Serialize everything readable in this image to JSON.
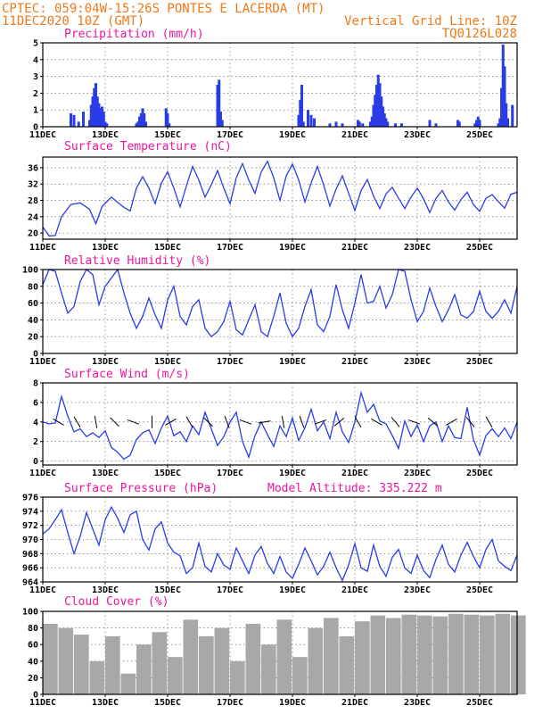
{
  "header": {
    "line1_left": "CPTEC:  059:04W-15:26S  PONTES E LACERDA (MT)",
    "line2_left": "11DEC2020 10Z (GMT)",
    "line2_right": "Vertical Grid Line: 10Z",
    "line3_right": "TQ0126L028"
  },
  "x_tick_labels": [
    "11DEC",
    "13DEC",
    "15DEC",
    "17DEC",
    "19DEC",
    "21DEC",
    "23DEC",
    "25DEC"
  ],
  "x_tick_days": [
    0,
    2,
    4,
    6,
    8,
    10,
    12,
    14
  ],
  "x_range_days": [
    0,
    15.2
  ],
  "chart_data": [
    {
      "type": "bar",
      "title": "Precipitation (mm/h)",
      "ylim": [
        0,
        5
      ],
      "yticks": [
        0,
        1,
        2,
        3,
        4,
        5
      ],
      "x_days": [
        0.9,
        1.0,
        1.15,
        1.3,
        1.5,
        1.55,
        1.6,
        1.65,
        1.7,
        1.75,
        1.8,
        1.85,
        1.9,
        1.95,
        2.0,
        2.05,
        3.0,
        3.05,
        3.1,
        3.15,
        3.2,
        3.25,
        3.3,
        3.95,
        4.0,
        4.05,
        5.6,
        5.65,
        5.7,
        5.75,
        8.2,
        8.25,
        8.3,
        8.35,
        8.5,
        8.6,
        8.7,
        9.2,
        9.4,
        9.6,
        10.1,
        10.15,
        10.25,
        10.5,
        10.55,
        10.6,
        10.65,
        10.7,
        10.75,
        10.8,
        10.85,
        10.9,
        10.95,
        11.0,
        11.05,
        11.3,
        11.5,
        12.4,
        12.6,
        13.3,
        13.35,
        13.85,
        13.9,
        13.95,
        14.0,
        14.6,
        14.65,
        14.7,
        14.75,
        14.8,
        14.85,
        14.9,
        15.05
      ],
      "values": [
        0.8,
        0.7,
        0.3,
        0.9,
        0.4,
        1.3,
        1.8,
        2.3,
        2.6,
        1.8,
        1.4,
        1.1,
        1.2,
        0.9,
        0.3,
        0.2,
        0.2,
        0.3,
        0.6,
        0.8,
        1.1,
        0.8,
        0.3,
        1.1,
        0.8,
        0.2,
        2.5,
        2.8,
        0.9,
        0.4,
        0.7,
        1.6,
        2.5,
        0.3,
        1.0,
        0.7,
        0.5,
        0.2,
        0.3,
        0.2,
        0.4,
        0.3,
        0.2,
        0.3,
        0.6,
        1.3,
        1.9,
        2.5,
        3.1,
        2.6,
        1.8,
        1.2,
        0.8,
        0.5,
        0.3,
        0.2,
        0.2,
        0.4,
        0.2,
        0.4,
        0.3,
        0.2,
        0.4,
        0.6,
        0.4,
        0.2,
        0.5,
        2.3,
        4.9,
        3.6,
        1.4,
        0.5,
        1.3
      ]
    },
    {
      "type": "line",
      "title": "Surface Temperature (nC)",
      "ylim": [
        18.5,
        38.6
      ],
      "yticks": [
        20,
        24,
        28,
        32,
        36
      ],
      "x_days": [
        0,
        0.2,
        0.4,
        0.6,
        0.9,
        1.2,
        1.5,
        1.7,
        1.9,
        2.2,
        2.4,
        2.6,
        2.8,
        3.0,
        3.2,
        3.4,
        3.6,
        3.8,
        4.0,
        4.2,
        4.4,
        4.6,
        4.8,
        5.0,
        5.2,
        5.4,
        5.6,
        5.8,
        6.0,
        6.2,
        6.4,
        6.6,
        6.8,
        7.0,
        7.2,
        7.4,
        7.6,
        7.8,
        8.0,
        8.2,
        8.4,
        8.6,
        8.8,
        9.0,
        9.2,
        9.4,
        9.6,
        9.8,
        10.0,
        10.2,
        10.4,
        10.6,
        10.8,
        11.0,
        11.2,
        11.4,
        11.6,
        11.8,
        12.0,
        12.2,
        12.4,
        12.6,
        12.8,
        13.0,
        13.2,
        13.4,
        13.6,
        13.8,
        14.0,
        14.2,
        14.4,
        14.6,
        14.8,
        15.0,
        15.2
      ],
      "values": [
        21.5,
        19.3,
        19.4,
        24.0,
        27.0,
        27.4,
        25.8,
        22.3,
        26.5,
        28.8,
        27.5,
        26.3,
        25.4,
        31.0,
        33.8,
        31.0,
        27.2,
        32.2,
        35.0,
        31.0,
        26.4,
        31.5,
        36.3,
        33.0,
        28.8,
        31.8,
        35.3,
        31.0,
        27.2,
        33.5,
        37.0,
        33.0,
        29.7,
        35.0,
        37.6,
        33.5,
        28.0,
        34.0,
        36.9,
        33.0,
        27.6,
        32.3,
        36.3,
        31.8,
        26.6,
        30.8,
        34.0,
        29.8,
        25.5,
        30.4,
        33.1,
        29.0,
        26.0,
        29.6,
        31.2,
        28.5,
        26.0,
        28.8,
        31.0,
        28.4,
        25.0,
        28.5,
        30.4,
        27.6,
        25.6,
        28.2,
        30.0,
        27.0,
        25.3,
        28.5,
        29.4,
        27.7,
        26.1,
        29.5,
        30.0
      ]
    },
    {
      "type": "line",
      "title": "Relative Humidity (%)",
      "ylim": [
        0,
        100
      ],
      "yticks": [
        0,
        20,
        40,
        60,
        80,
        100
      ],
      "x_days": [
        0,
        0.2,
        0.4,
        0.6,
        0.8,
        1.0,
        1.2,
        1.4,
        1.6,
        1.8,
        2.0,
        2.2,
        2.4,
        2.6,
        2.8,
        3.0,
        3.2,
        3.4,
        3.6,
        3.8,
        4.0,
        4.2,
        4.4,
        4.6,
        4.8,
        5.0,
        5.2,
        5.4,
        5.6,
        5.8,
        6.0,
        6.2,
        6.4,
        6.6,
        6.8,
        7.0,
        7.2,
        7.4,
        7.6,
        7.8,
        8.0,
        8.2,
        8.4,
        8.6,
        8.8,
        9.0,
        9.2,
        9.4,
        9.6,
        9.8,
        10.0,
        10.2,
        10.4,
        10.6,
        10.8,
        11.0,
        11.2,
        11.4,
        11.6,
        11.8,
        12.0,
        12.2,
        12.4,
        12.6,
        12.8,
        13.0,
        13.2,
        13.4,
        13.6,
        13.8,
        14.0,
        14.2,
        14.4,
        14.6,
        14.8,
        15.0,
        15.2
      ],
      "values": [
        82,
        100,
        98,
        72,
        48,
        56,
        86,
        100,
        94,
        58,
        80,
        90,
        100,
        72,
        48,
        30,
        44,
        66,
        46,
        30,
        64,
        80,
        44,
        34,
        56,
        64,
        30,
        20,
        26,
        38,
        62,
        28,
        22,
        40,
        58,
        26,
        20,
        44,
        72,
        36,
        20,
        30,
        56,
        76,
        34,
        26,
        44,
        82,
        52,
        30,
        60,
        94,
        60,
        62,
        80,
        54,
        70,
        100,
        98,
        64,
        38,
        50,
        78,
        56,
        38,
        52,
        70,
        46,
        42,
        50,
        74,
        50,
        42,
        50,
        64,
        48,
        80
      ]
    },
    {
      "type": "line",
      "title": "Surface Wind (m/s)",
      "ylim": [
        -0.4,
        8
      ],
      "yticks": [
        0,
        2,
        4,
        6,
        8
      ],
      "x_days": [
        0,
        0.2,
        0.4,
        0.6,
        0.8,
        1.0,
        1.2,
        1.4,
        1.6,
        1.8,
        2.0,
        2.2,
        2.4,
        2.6,
        2.8,
        3.0,
        3.2,
        3.4,
        3.6,
        3.8,
        4.0,
        4.2,
        4.4,
        4.6,
        4.8,
        5.0,
        5.2,
        5.4,
        5.6,
        5.8,
        6.0,
        6.2,
        6.4,
        6.6,
        6.8,
        7.0,
        7.2,
        7.4,
        7.6,
        7.8,
        8.0,
        8.2,
        8.4,
        8.6,
        8.8,
        9.0,
        9.2,
        9.4,
        9.6,
        9.8,
        10.0,
        10.2,
        10.4,
        10.6,
        10.8,
        11.0,
        11.2,
        11.4,
        11.6,
        11.8,
        12.0,
        12.2,
        12.4,
        12.6,
        12.8,
        13.0,
        13.2,
        13.4,
        13.6,
        13.8,
        14.0,
        14.2,
        14.4,
        14.6,
        14.8,
        15.0,
        15.2
      ],
      "values": [
        4.0,
        3.8,
        3.9,
        6.6,
        4.6,
        3.0,
        3.3,
        2.5,
        2.9,
        2.4,
        3.1,
        1.4,
        0.9,
        0.2,
        0.6,
        2.2,
        2.9,
        3.2,
        1.8,
        3.4,
        4.6,
        2.6,
        3.0,
        2.0,
        3.6,
        2.7,
        5.0,
        3.3,
        1.6,
        2.5,
        4.0,
        5.0,
        2.0,
        0.4,
        2.6,
        4.0,
        2.7,
        1.5,
        3.6,
        2.5,
        4.4,
        2.1,
        3.4,
        5.3,
        3.1,
        4.0,
        2.3,
        5.0,
        3.0,
        1.9,
        4.0,
        7.0,
        5.0,
        5.8,
        4.1,
        3.8,
        2.6,
        1.3,
        4.1,
        2.5,
        3.7,
        2.0,
        3.6,
        4.0,
        2.0,
        3.6,
        2.4,
        2.3,
        5.5,
        2.2,
        0.6,
        2.6,
        3.3,
        2.5,
        3.4,
        2.3,
        4.0
      ]
    },
    {
      "type": "line",
      "title": "Surface Pressure (hPa)",
      "annotation": "Model Altitude: 335.222 m",
      "ylim": [
        964,
        976
      ],
      "yticks": [
        964,
        966,
        968,
        970,
        972,
        974,
        976
      ],
      "x_days": [
        0,
        0.2,
        0.4,
        0.6,
        0.8,
        1.0,
        1.2,
        1.4,
        1.6,
        1.8,
        2.0,
        2.2,
        2.4,
        2.6,
        2.8,
        3.0,
        3.2,
        3.4,
        3.6,
        3.8,
        4.0,
        4.2,
        4.4,
        4.6,
        4.8,
        5.0,
        5.2,
        5.4,
        5.6,
        5.8,
        6.0,
        6.2,
        6.4,
        6.6,
        6.8,
        7.0,
        7.2,
        7.4,
        7.6,
        7.8,
        8.0,
        8.2,
        8.4,
        8.6,
        8.8,
        9.0,
        9.2,
        9.4,
        9.6,
        9.8,
        10.0,
        10.2,
        10.4,
        10.6,
        10.8,
        11.0,
        11.2,
        11.4,
        11.6,
        11.8,
        12.0,
        12.2,
        12.4,
        12.6,
        12.8,
        13.0,
        13.2,
        13.4,
        13.6,
        13.8,
        14.0,
        14.2,
        14.4,
        14.6,
        14.8,
        15.0,
        15.2
      ],
      "values": [
        970.8,
        971.5,
        972.8,
        974.2,
        971.0,
        968.0,
        970.5,
        973.8,
        971.5,
        969.2,
        972.8,
        974.6,
        973.0,
        971.0,
        973.5,
        974.0,
        970.0,
        968.5,
        971.5,
        972.5,
        969.5,
        968.2,
        967.7,
        965.2,
        966.0,
        969.5,
        966.2,
        965.4,
        968.0,
        966.4,
        965.8,
        968.8,
        967.0,
        965.2,
        967.8,
        969.0,
        966.6,
        965.2,
        967.6,
        965.4,
        964.5,
        966.5,
        968.8,
        967.0,
        965.0,
        966.2,
        968.2,
        966.0,
        964.2,
        966.4,
        969.4,
        966.0,
        965.5,
        969.2,
        966.2,
        964.8,
        967.5,
        968.6,
        966.0,
        965.2,
        967.8,
        965.6,
        964.6,
        967.2,
        969.2,
        966.5,
        965.4,
        967.8,
        969.6,
        967.6,
        966.0,
        968.6,
        970.0,
        967.0,
        966.2,
        965.6,
        967.8
      ]
    },
    {
      "type": "bar",
      "title": "Cloud Cover (%)",
      "ylim": [
        0,
        100
      ],
      "yticks": [
        0,
        20,
        40,
        60,
        80,
        100
      ],
      "x_days": [
        0,
        0.5,
        1.0,
        1.5,
        2.0,
        2.5,
        3.0,
        3.5,
        4.0,
        4.5,
        5.0,
        5.5,
        6.0,
        6.5,
        7.0,
        7.5,
        8.0,
        8.5,
        9.0,
        9.5,
        10.0,
        10.5,
        11.0,
        11.5,
        12.0,
        12.5,
        13.0,
        13.5,
        14.0,
        14.5,
        15.0
      ],
      "values": [
        85,
        80,
        72,
        40,
        70,
        25,
        60,
        75,
        45,
        90,
        70,
        80,
        40,
        85,
        60,
        90,
        45,
        80,
        92,
        70,
        88,
        95,
        92,
        96,
        95,
        94,
        97,
        96,
        95,
        97,
        95
      ]
    }
  ]
}
